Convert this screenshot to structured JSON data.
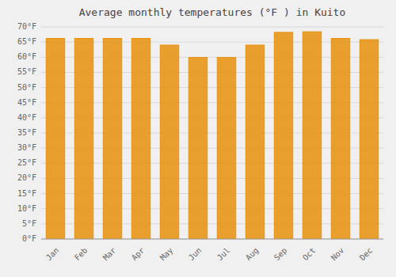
{
  "chart_data": {
    "type": "bar",
    "title": "Average monthly temperatures (°F ) in Kuito",
    "categories": [
      "Jan",
      "Feb",
      "Mar",
      "Apr",
      "May",
      "Jun",
      "Jul",
      "Aug",
      "Sep",
      "Oct",
      "Nov",
      "Dec"
    ],
    "values": [
      66.2,
      66.2,
      66.2,
      66.2,
      64.0,
      59.9,
      59.9,
      64.0,
      68.2,
      68.4,
      66.2,
      65.8
    ],
    "color": "#E8900A",
    "ylim": [
      0,
      70
    ],
    "yticks": [
      {
        "value": 0,
        "label": "0°F"
      },
      {
        "value": 5,
        "label": "5°F"
      },
      {
        "value": 10,
        "label": "10°F"
      },
      {
        "value": 15,
        "label": "15°F"
      },
      {
        "value": 20,
        "label": "20°F"
      },
      {
        "value": 25,
        "label": "25°F"
      },
      {
        "value": 30,
        "label": "30°F"
      },
      {
        "value": 35,
        "label": "35°F"
      },
      {
        "value": 40,
        "label": "40°F"
      },
      {
        "value": 45,
        "label": "45°F"
      },
      {
        "value": 50,
        "label": "50°F"
      },
      {
        "value": 55,
        "label": "55°F"
      },
      {
        "value": 60,
        "label": "60°F"
      },
      {
        "value": 65,
        "label": "65°F"
      },
      {
        "value": 70,
        "label": "70°F"
      }
    ],
    "grid": true
  }
}
